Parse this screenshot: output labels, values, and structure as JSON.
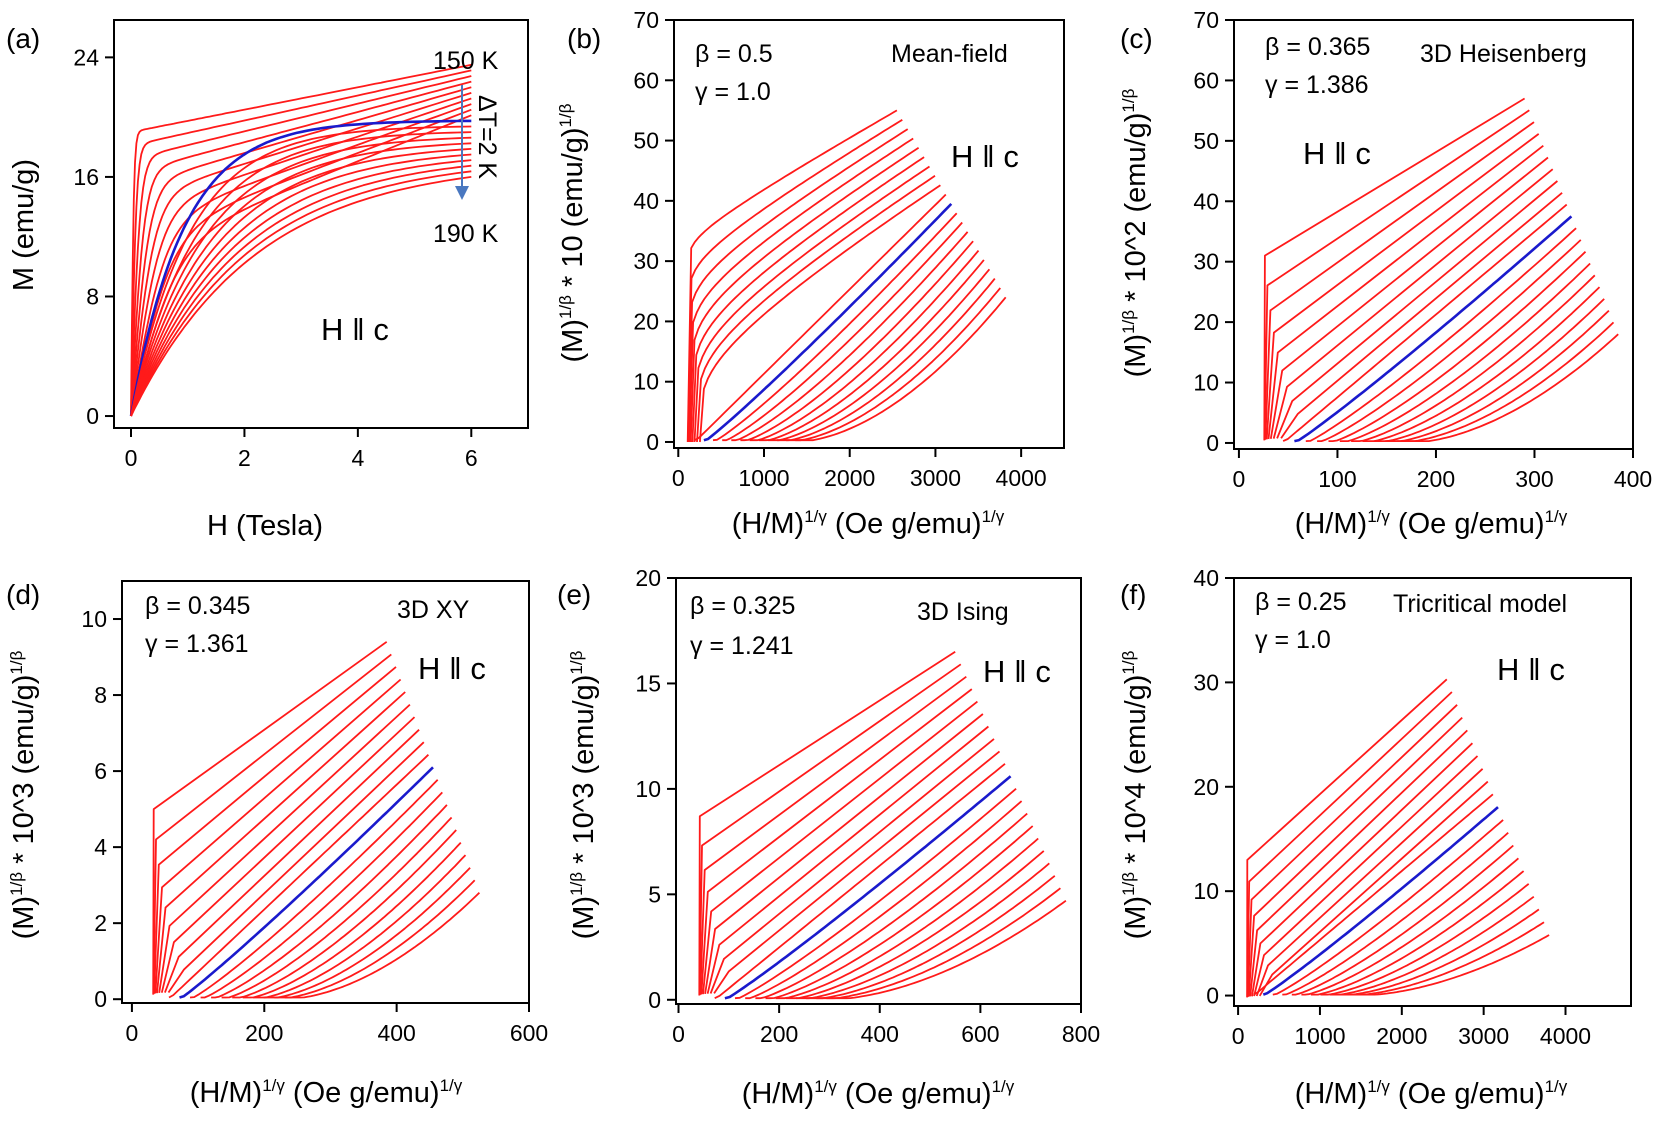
{
  "figure": {
    "background": "#ffffff",
    "red_color": "#ff1a1a",
    "blue_color": "#1a1acc",
    "arrow_color": "#4a78c0"
  },
  "chart_data": [
    {
      "panel": "(a)",
      "type": "line",
      "xlabel": "H (Tesla)",
      "ylabel": "M (emu/g)",
      "xlim": [
        -0.3,
        7.0
      ],
      "ylim": [
        -0.8,
        26.5
      ],
      "xticks": [
        0,
        2,
        4,
        6
      ],
      "yticks": [
        0,
        8,
        16,
        24
      ],
      "annotations": [
        "150 K",
        "190 K",
        "ΔT=2 K"
      ],
      "field_label": "H ‖ c",
      "series_count": 21,
      "blue_series_index": 10,
      "curve_kind": "MH",
      "x_end_values": [
        6.0
      ],
      "y_end_values": [
        23.5,
        16.0
      ],
      "y_knee_values": [
        19.0,
        1.0
      ]
    },
    {
      "panel": "(b)",
      "type": "line",
      "xlabel": "(H/M)^{1/γ} (Oe g/emu)^{1/γ}",
      "ylabel": "(M)^{1/β} * 10 (emu/g)^{1/β}",
      "xlim": [
        -50,
        4500
      ],
      "ylim": [
        -1,
        70
      ],
      "xticks": [
        0,
        1000,
        2000,
        3000,
        4000
      ],
      "yticks": [
        0,
        10,
        20,
        30,
        40,
        50,
        60,
        70
      ],
      "beta_text": "β = 0.5",
      "gamma_text": "γ = 1.0",
      "model": "Mean-field",
      "field_label": "H ‖ c",
      "series_count": 21,
      "blue_series_index": 10,
      "curve_kind": "arrott",
      "x_knee_values": [
        120,
        1950
      ],
      "x_end_values": [
        2550,
        3820
      ],
      "y_knee_values": [
        36,
        1
      ],
      "y_end_values": [
        55,
        24
      ]
    },
    {
      "panel": "(c)",
      "type": "line",
      "xlabel": "(H/M)^{1/γ} (Oe g/emu)^{1/γ}",
      "ylabel": "(M)^{1/β} * 10^2 (emu/g)^{1/β}",
      "xlim": [
        -5,
        400
      ],
      "ylim": [
        -1,
        70
      ],
      "xticks": [
        0,
        100,
        200,
        300,
        400
      ],
      "yticks": [
        0,
        10,
        20,
        30,
        40,
        50,
        60,
        70
      ],
      "beta_text": "β = 0.365",
      "gamma_text": "γ = 1.386",
      "model": "3D Heisenberg",
      "field_label": "H ‖ c",
      "series_count": 21,
      "blue_series_index": 10,
      "curve_kind": "linear",
      "x_knee_values": [
        28,
        245
      ],
      "x_end_values": [
        290,
        385
      ],
      "y_knee_values": [
        31,
        1
      ],
      "y_end_values": [
        57,
        18
      ]
    },
    {
      "panel": "(d)",
      "type": "line",
      "xlabel": "(H/M)^{1/γ} (Oe g/emu)^{1/γ}",
      "ylabel": "(M)^{1/β} * 10^3 (emu/g)^{1/β}",
      "xlim": [
        -15,
        600
      ],
      "ylim": [
        -0.1,
        11
      ],
      "xticks": [
        0,
        200,
        400,
        600
      ],
      "yticks": [
        0,
        2,
        4,
        6,
        8,
        10
      ],
      "beta_text": "β = 0.345",
      "gamma_text": "γ = 1.361",
      "model": "3D XY",
      "field_label": "H ‖ c",
      "series_count": 21,
      "blue_series_index": 10,
      "curve_kind": "linear",
      "x_knee_values": [
        35,
        330
      ],
      "x_end_values": [
        385,
        525
      ],
      "y_knee_values": [
        5.0,
        0.15
      ],
      "y_end_values": [
        9.4,
        2.8
      ]
    },
    {
      "panel": "(e)",
      "type": "line",
      "xlabel": "(H/M)^{1/γ} (Oe g/emu)^{1/γ}",
      "ylabel": "(M)^{1/β} * 10^3 (emu/g)^{1/β}",
      "xlim": [
        -5,
        800
      ],
      "ylim": [
        -0.2,
        20
      ],
      "xticks": [
        0,
        200,
        400,
        600,
        800
      ],
      "yticks": [
        0,
        5,
        10,
        15,
        20
      ],
      "beta_text": "β = 0.325",
      "gamma_text": "γ = 1.241",
      "model": "3D Ising",
      "field_label": "H ‖ c",
      "series_count": 21,
      "blue_series_index": 10,
      "curve_kind": "linear",
      "x_knee_values": [
        45,
        420
      ],
      "x_end_values": [
        550,
        770
      ],
      "y_knee_values": [
        8.7,
        0.25
      ],
      "y_end_values": [
        16.5,
        4.7
      ]
    },
    {
      "panel": "(f)",
      "type": "line",
      "xlabel": "(H/M)^{1/γ} (Oe g/emu)^{1/γ}",
      "ylabel": "(M)^{1/β} * 10^4 (emu/g)^{1/β}",
      "xlim": [
        -50,
        4800
      ],
      "ylim": [
        -1,
        40
      ],
      "xticks": [
        0,
        1000,
        2000,
        3000,
        4000
      ],
      "yticks": [
        0,
        10,
        20,
        30,
        40
      ],
      "beta_text": "β = 0.25",
      "gamma_text": "γ = 1.0",
      "model": "Tricritical model",
      "field_label": "H ‖ c",
      "series_count": 21,
      "blue_series_index": 10,
      "curve_kind": "linear",
      "x_knee_values": [
        120,
        2100
      ],
      "x_end_values": [
        2550,
        3800
      ],
      "y_knee_values": [
        13,
        0.3
      ],
      "y_end_values": [
        30.3,
        5.8
      ]
    }
  ]
}
